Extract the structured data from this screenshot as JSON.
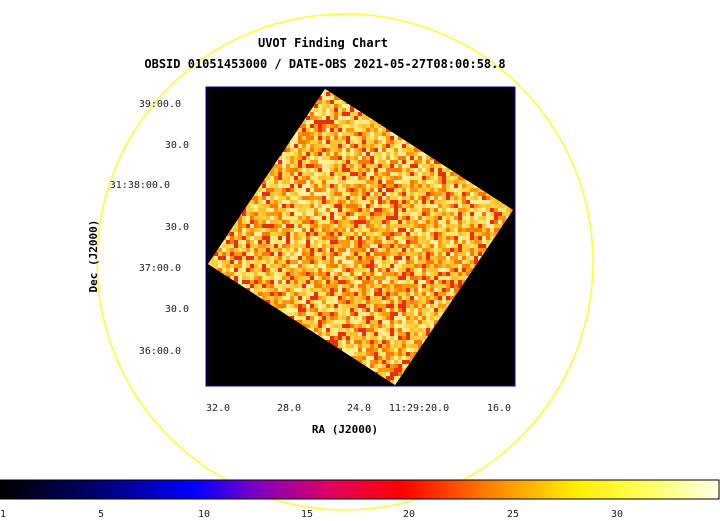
{
  "chart": {
    "title": "UVOT Finding Chart",
    "subtitle": "OBSID 01051453000 / DATE-OBS 2021-05-27T08:00:58.8",
    "xlabel": "RA (J2000)",
    "ylabel": "Dec (J2000)",
    "dec_ticks": [
      "39:00.0",
      "30.0",
      "31:38:00.0",
      "30.0",
      "37:00.0",
      "30.0",
      "36:00.0"
    ],
    "ra_ticks": [
      "32.0",
      "28.0",
      "24.0",
      "11:29:20.0",
      "16.0"
    ],
    "colorbar_ticks": [
      "1",
      "5",
      "10",
      "15",
      "20",
      "25",
      "30"
    ]
  },
  "colors": {
    "circle": "#ffff33",
    "frame": "#0000aa",
    "background": "#000000"
  }
}
